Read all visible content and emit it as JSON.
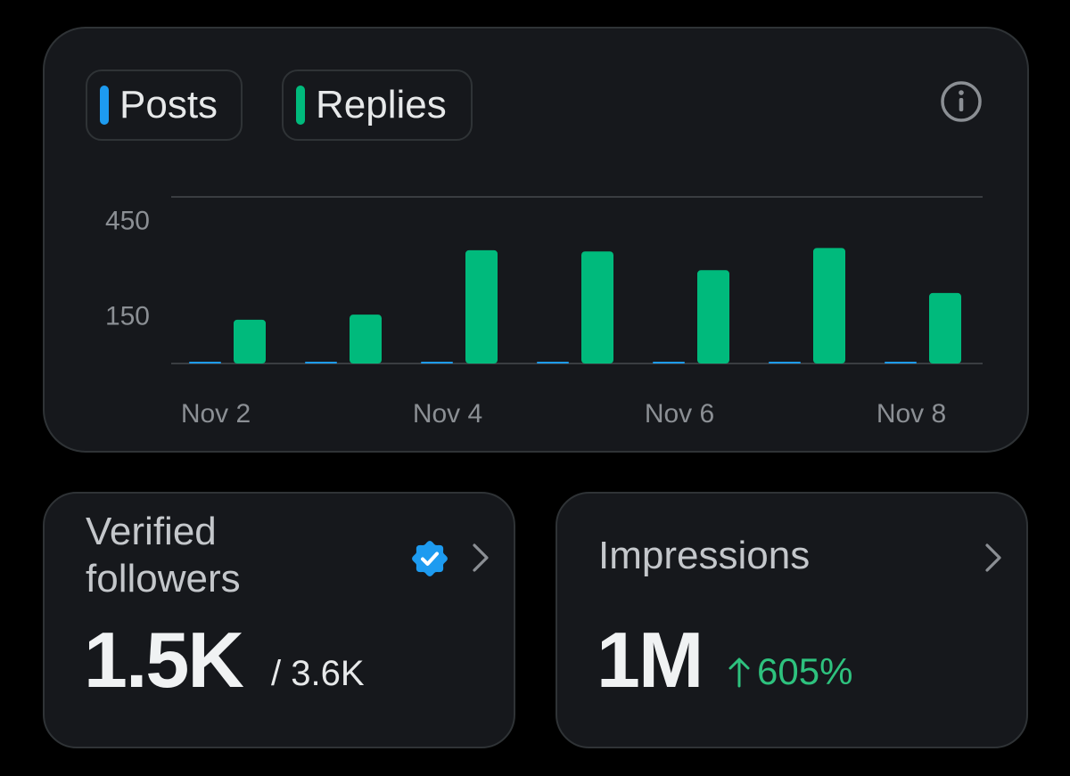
{
  "colors": {
    "posts": "#1d9bf0",
    "replies": "#00ba7c",
    "change_up": "#2ec27e",
    "verified": "#1d9bf0"
  },
  "legend": {
    "posts_label": "Posts",
    "replies_label": "Replies"
  },
  "chart_data": {
    "type": "bar",
    "categories": [
      "Nov 2",
      "Nov 3",
      "Nov 4",
      "Nov 5",
      "Nov 6",
      "Nov 7",
      "Nov 8"
    ],
    "x_tick_labels": [
      "Nov 2",
      "Nov 4",
      "Nov 6",
      "Nov 8"
    ],
    "y_tick_labels": [
      "450",
      "150"
    ],
    "y_ticks": [
      450,
      150
    ],
    "ylim": [
      0,
      525
    ],
    "grid": true,
    "series": [
      {
        "name": "Posts",
        "values": [
          2,
          1,
          2,
          2,
          2,
          3,
          2
        ]
      },
      {
        "name": "Replies",
        "values": [
          138,
          154,
          357,
          353,
          294,
          364,
          222
        ]
      }
    ]
  },
  "cards": {
    "followers": {
      "title": "Verified\nfollowers",
      "value": "1.5K",
      "total": "/ 3.6K",
      "badge_icon": "verified-badge-icon"
    },
    "impressions": {
      "title": "Impressions",
      "value": "1M",
      "change": "605%",
      "change_icon": "arrow-up-icon"
    }
  }
}
